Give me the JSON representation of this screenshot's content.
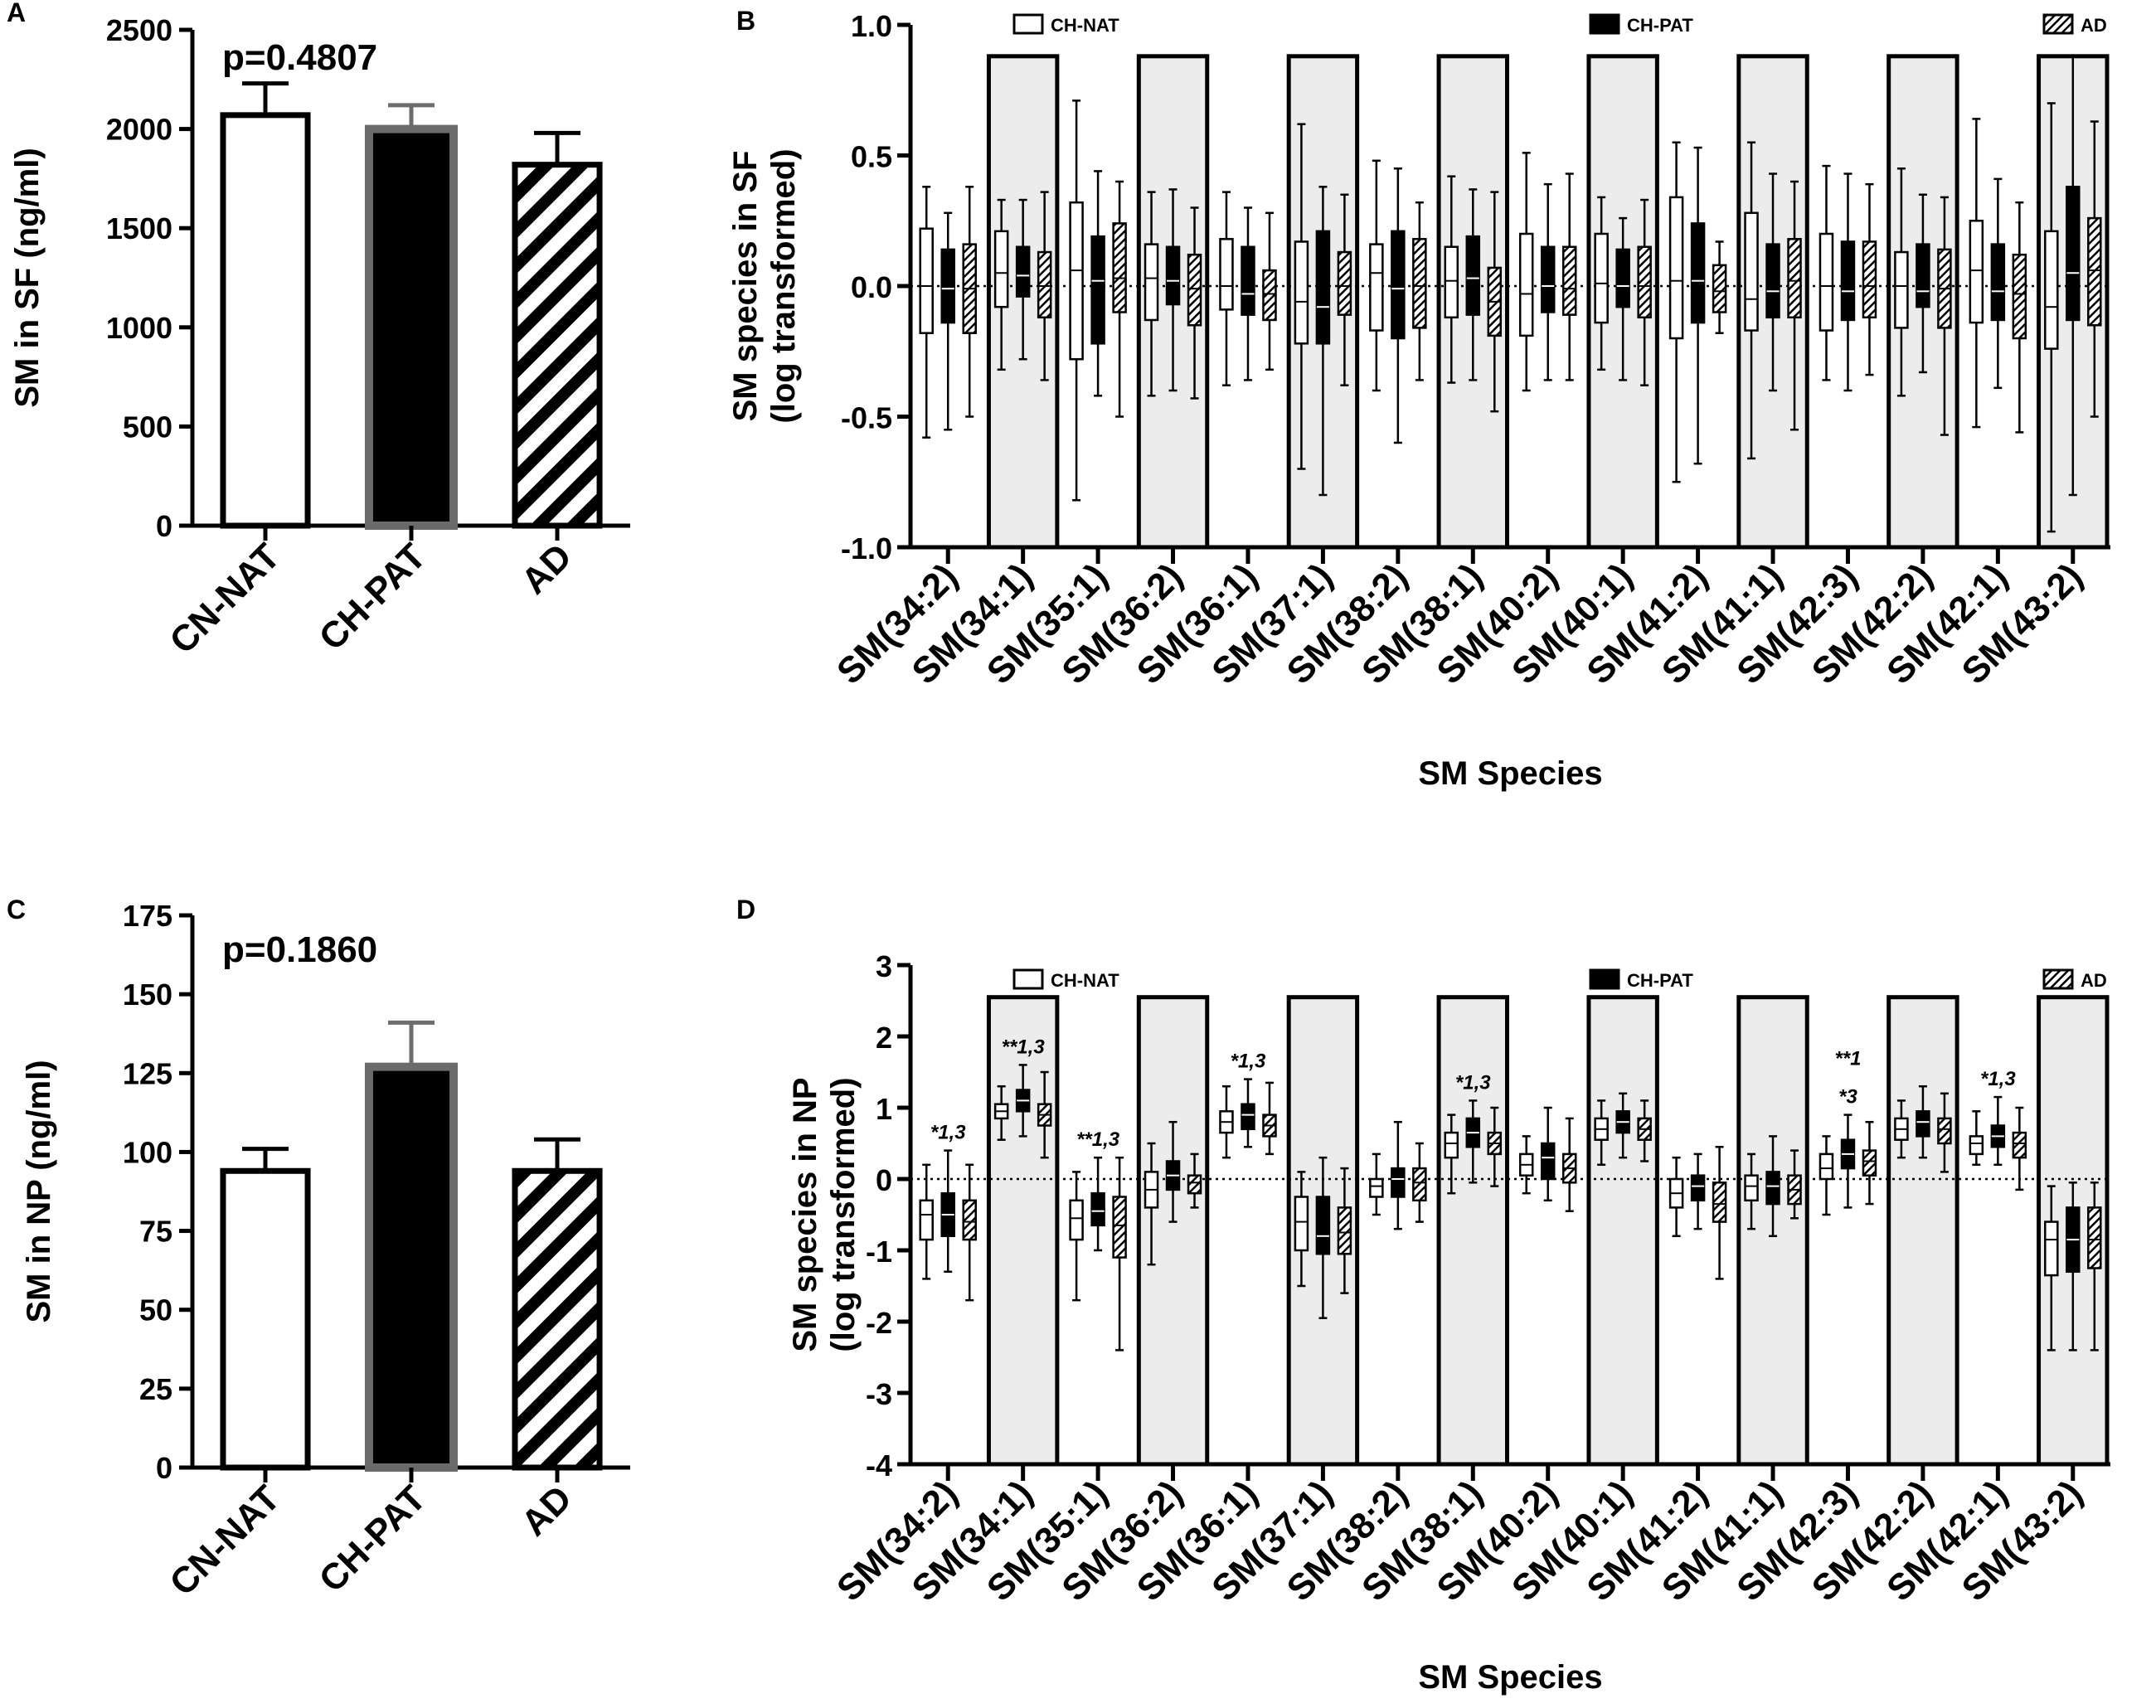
{
  "figure": {
    "panels": [
      "A",
      "B",
      "C",
      "D"
    ]
  },
  "chart_data": [
    {
      "id": "A",
      "type": "bar",
      "title": "",
      "ylabel": "SM in SF (ng/ml)",
      "xlabel": "",
      "ylim": [
        0,
        2500
      ],
      "yticks": [
        0,
        500,
        1000,
        1500,
        2000,
        2500
      ],
      "annotation": "p=0.4807",
      "categories": [
        "CN-NAT",
        "CH-PAT",
        "AD"
      ],
      "values": [
        2070,
        2000,
        1820
      ],
      "errors": [
        160,
        120,
        160
      ],
      "styles": [
        "open",
        "solid",
        "hatch"
      ]
    },
    {
      "id": "B",
      "type": "box",
      "ylabel": "SM  species in SF (log transformed)",
      "ylabel_lines": [
        "SM  species in SF",
        "(log transformed)"
      ],
      "xlabel": "SM Species",
      "ylim": [
        -1.0,
        1.0
      ],
      "yticks": [
        -1.0,
        -0.5,
        0.0,
        0.5,
        1.0
      ],
      "ytick_labels": [
        "-1.0",
        "-0.5",
        "0.0",
        "0.5",
        "1.0"
      ],
      "shade_top": 0.88,
      "legend": [
        "CH-NAT",
        "CH-PAT",
        "AD"
      ],
      "categories": [
        "SM(34:2)",
        "SM(34:1)",
        "SM(35:1)",
        "SM(36:2)",
        "SM(36:1)",
        "SM(37:1)",
        "SM(38:2)",
        "SM(38:1)",
        "SM(40:2)",
        "SM(40:1)",
        "SM(41:2)",
        "SM(41:1)",
        "SM(42:3)",
        "SM(42:2)",
        "SM(42:1)",
        "SM(43:2)"
      ],
      "series": [
        {
          "name": "CH-NAT",
          "style": "open",
          "boxes": [
            [
              -0.58,
              -0.18,
              0.0,
              0.22,
              0.38
            ],
            [
              -0.32,
              -0.08,
              0.05,
              0.21,
              0.33
            ],
            [
              -0.82,
              -0.28,
              0.06,
              0.32,
              0.71
            ],
            [
              -0.42,
              -0.13,
              0.03,
              0.16,
              0.36
            ],
            [
              -0.38,
              -0.09,
              0.0,
              0.18,
              0.36
            ],
            [
              -0.7,
              -0.22,
              -0.06,
              0.17,
              0.62
            ],
            [
              -0.4,
              -0.17,
              0.05,
              0.16,
              0.48
            ],
            [
              -0.37,
              -0.12,
              0.02,
              0.15,
              0.42
            ],
            [
              -0.4,
              -0.19,
              -0.03,
              0.2,
              0.51
            ],
            [
              -0.32,
              -0.14,
              0.01,
              0.2,
              0.34
            ],
            [
              -0.75,
              -0.2,
              0.02,
              0.34,
              0.55
            ],
            [
              -0.66,
              -0.17,
              -0.05,
              0.28,
              0.55
            ],
            [
              -0.36,
              -0.17,
              0.0,
              0.2,
              0.46
            ],
            [
              -0.42,
              -0.16,
              0.0,
              0.13,
              0.45
            ],
            [
              -0.54,
              -0.14,
              0.06,
              0.25,
              0.64
            ],
            [
              -0.94,
              -0.24,
              -0.08,
              0.21,
              0.7
            ]
          ]
        },
        {
          "name": "CH-PAT",
          "style": "solid",
          "boxes": [
            [
              -0.55,
              -0.14,
              -0.01,
              0.14,
              0.28
            ],
            [
              -0.28,
              -0.04,
              0.04,
              0.15,
              0.33
            ],
            [
              -0.42,
              -0.22,
              0.02,
              0.19,
              0.44
            ],
            [
              -0.4,
              -0.07,
              0.02,
              0.15,
              0.37
            ],
            [
              -0.36,
              -0.11,
              -0.03,
              0.15,
              0.3
            ],
            [
              -0.8,
              -0.22,
              -0.08,
              0.21,
              0.38
            ],
            [
              -0.6,
              -0.2,
              -0.01,
              0.21,
              0.45
            ],
            [
              -0.36,
              -0.11,
              0.03,
              0.19,
              0.37
            ],
            [
              -0.36,
              -0.1,
              0.0,
              0.15,
              0.39
            ],
            [
              -0.36,
              -0.08,
              0.0,
              0.14,
              0.26
            ],
            [
              -0.68,
              -0.14,
              0.02,
              0.24,
              0.53
            ],
            [
              -0.4,
              -0.12,
              -0.02,
              0.16,
              0.43
            ],
            [
              -0.4,
              -0.13,
              -0.02,
              0.17,
              0.43
            ],
            [
              -0.33,
              -0.08,
              -0.02,
              0.16,
              0.35
            ],
            [
              -0.39,
              -0.13,
              -0.02,
              0.16,
              0.41
            ],
            [
              -0.8,
              -0.13,
              0.05,
              0.38,
              0.88
            ]
          ]
        },
        {
          "name": "AD",
          "style": "hatch",
          "boxes": [
            [
              -0.5,
              -0.18,
              -0.01,
              0.16,
              0.38
            ],
            [
              -0.36,
              -0.12,
              0.0,
              0.13,
              0.36
            ],
            [
              -0.5,
              -0.1,
              0.03,
              0.24,
              0.4
            ],
            [
              -0.43,
              -0.15,
              -0.01,
              0.12,
              0.3
            ],
            [
              -0.32,
              -0.13,
              -0.03,
              0.06,
              0.28
            ],
            [
              -0.38,
              -0.11,
              0.0,
              0.13,
              0.35
            ],
            [
              -0.36,
              -0.16,
              0.0,
              0.18,
              0.32
            ],
            [
              -0.48,
              -0.19,
              -0.06,
              0.07,
              0.36
            ],
            [
              -0.36,
              -0.11,
              -0.01,
              0.15,
              0.43
            ],
            [
              -0.38,
              -0.12,
              0.0,
              0.15,
              0.33
            ],
            [
              -0.18,
              -0.1,
              -0.02,
              0.08,
              0.17
            ],
            [
              -0.55,
              -0.12,
              0.02,
              0.18,
              0.4
            ],
            [
              -0.34,
              -0.12,
              0.0,
              0.17,
              0.39
            ],
            [
              -0.57,
              -0.16,
              -0.01,
              0.14,
              0.34
            ],
            [
              -0.56,
              -0.2,
              -0.03,
              0.12,
              0.32
            ],
            [
              -0.5,
              -0.15,
              0.06,
              0.26,
              0.63
            ]
          ]
        }
      ]
    },
    {
      "id": "C",
      "type": "bar",
      "title": "",
      "ylabel": "SM in NP (ng/ml)",
      "xlabel": "",
      "ylim": [
        0,
        175
      ],
      "yticks": [
        0,
        25,
        50,
        75,
        100,
        125,
        150,
        175
      ],
      "annotation": "p=0.1860",
      "categories": [
        "CN-NAT",
        "CH-PAT",
        "AD"
      ],
      "values": [
        94,
        127,
        94
      ],
      "errors": [
        7,
        14,
        10
      ],
      "styles": [
        "open",
        "solid",
        "hatch"
      ]
    },
    {
      "id": "D",
      "type": "box",
      "ylabel": "SM  species in NP (log transformed)",
      "ylabel_lines": [
        "SM  species in NP",
        "(log transformed)"
      ],
      "xlabel": "SM Species",
      "ylim": [
        -4,
        3
      ],
      "yticks": [
        -4,
        -3,
        -2,
        -1,
        0,
        1,
        2,
        3
      ],
      "ytick_labels": [
        "-4",
        "-3",
        "-2",
        "-1",
        "0",
        "1",
        "2",
        "3"
      ],
      "shade_top": 2.55,
      "legend": [
        "CH-NAT",
        "CH-PAT",
        "AD"
      ],
      "categories": [
        "SM(34:2)",
        "SM(34:1)",
        "SM(35:1)",
        "SM(36:2)",
        "SM(36:1)",
        "SM(37:1)",
        "SM(38:2)",
        "SM(38:1)",
        "SM(40:2)",
        "SM(40:1)",
        "SM(41:2)",
        "SM(41:1)",
        "SM(42:3)",
        "SM(42:2)",
        "SM(42:1)",
        "SM(43:2)"
      ],
      "significance": [
        {
          "cat": 0,
          "lines": [
            "*1,3"
          ]
        },
        {
          "cat": 1,
          "lines": [
            "**1,3"
          ]
        },
        {
          "cat": 2,
          "lines": [
            "**1,3"
          ]
        },
        {
          "cat": 4,
          "lines": [
            "*1,3"
          ]
        },
        {
          "cat": 7,
          "lines": [
            "*1,3"
          ]
        },
        {
          "cat": 12,
          "lines": [
            "**1",
            "*3"
          ]
        },
        {
          "cat": 14,
          "lines": [
            "*1,3"
          ]
        }
      ],
      "series": [
        {
          "name": "CH-NAT",
          "style": "open",
          "boxes": [
            [
              -1.4,
              -0.85,
              -0.5,
              -0.3,
              0.2
            ],
            [
              0.55,
              0.85,
              0.95,
              1.05,
              1.3
            ],
            [
              -1.7,
              -0.85,
              -0.55,
              -0.3,
              0.1
            ],
            [
              -1.2,
              -0.4,
              -0.15,
              0.1,
              0.5
            ],
            [
              0.3,
              0.65,
              0.8,
              0.95,
              1.3
            ],
            [
              -1.5,
              -1.0,
              -0.6,
              -0.25,
              0.1
            ],
            [
              -0.5,
              -0.25,
              -0.1,
              0.0,
              0.35
            ],
            [
              -0.2,
              0.3,
              0.5,
              0.65,
              0.9
            ],
            [
              -0.2,
              0.05,
              0.2,
              0.35,
              0.6
            ],
            [
              0.2,
              0.55,
              0.7,
              0.85,
              1.1
            ],
            [
              -0.8,
              -0.4,
              -0.2,
              0.0,
              0.3
            ],
            [
              -0.7,
              -0.3,
              -0.1,
              0.05,
              0.35
            ],
            [
              -0.5,
              0.0,
              0.15,
              0.35,
              0.6
            ],
            [
              0.3,
              0.55,
              0.7,
              0.85,
              1.1
            ],
            [
              0.2,
              0.35,
              0.5,
              0.6,
              0.95
            ],
            [
              -2.4,
              -1.35,
              -0.85,
              -0.6,
              -0.1
            ]
          ]
        },
        {
          "name": "CH-PAT",
          "style": "solid",
          "boxes": [
            [
              -1.3,
              -0.8,
              -0.5,
              -0.2,
              0.4
            ],
            [
              0.6,
              0.95,
              1.1,
              1.25,
              1.6
            ],
            [
              -1.0,
              -0.65,
              -0.45,
              -0.2,
              0.3
            ],
            [
              -0.6,
              -0.15,
              0.05,
              0.25,
              0.8
            ],
            [
              0.45,
              0.7,
              0.9,
              1.05,
              1.4
            ],
            [
              -1.95,
              -1.05,
              -0.8,
              -0.25,
              0.3
            ],
            [
              -0.7,
              -0.25,
              0.0,
              0.15,
              0.8
            ],
            [
              -0.05,
              0.45,
              0.65,
              0.85,
              1.1
            ],
            [
              -0.3,
              0.0,
              0.3,
              0.5,
              1.0
            ],
            [
              0.3,
              0.65,
              0.8,
              0.95,
              1.2
            ],
            [
              -0.7,
              -0.3,
              -0.1,
              0.05,
              0.35
            ],
            [
              -0.8,
              -0.35,
              -0.1,
              0.1,
              0.6
            ],
            [
              -0.4,
              0.15,
              0.35,
              0.55,
              0.9
            ],
            [
              0.3,
              0.6,
              0.8,
              0.95,
              1.3
            ],
            [
              0.2,
              0.45,
              0.6,
              0.75,
              1.15
            ],
            [
              -2.4,
              -1.3,
              -0.85,
              -0.4,
              -0.05
            ]
          ]
        },
        {
          "name": "AD",
          "style": "hatch",
          "boxes": [
            [
              -1.7,
              -0.85,
              -0.6,
              -0.3,
              0.2
            ],
            [
              0.3,
              0.75,
              0.9,
              1.05,
              1.5
            ],
            [
              -2.4,
              -1.1,
              -0.65,
              -0.25,
              0.3
            ],
            [
              -0.4,
              -0.2,
              -0.05,
              0.05,
              0.35
            ],
            [
              0.35,
              0.6,
              0.75,
              0.9,
              1.35
            ],
            [
              -1.6,
              -1.05,
              -0.75,
              -0.4,
              0.15
            ],
            [
              -0.6,
              -0.3,
              -0.05,
              0.15,
              0.5
            ],
            [
              -0.1,
              0.35,
              0.5,
              0.65,
              1.0
            ],
            [
              -0.45,
              -0.05,
              0.15,
              0.35,
              0.85
            ],
            [
              0.25,
              0.55,
              0.7,
              0.85,
              1.1
            ],
            [
              -1.4,
              -0.6,
              -0.35,
              -0.05,
              0.45
            ],
            [
              -0.55,
              -0.35,
              -0.15,
              0.05,
              0.4
            ],
            [
              -0.35,
              0.05,
              0.25,
              0.4,
              0.8
            ],
            [
              0.1,
              0.5,
              0.7,
              0.85,
              1.2
            ],
            [
              -0.15,
              0.3,
              0.5,
              0.65,
              1.0
            ],
            [
              -2.4,
              -1.25,
              -0.85,
              -0.4,
              -0.05
            ]
          ]
        }
      ]
    }
  ]
}
